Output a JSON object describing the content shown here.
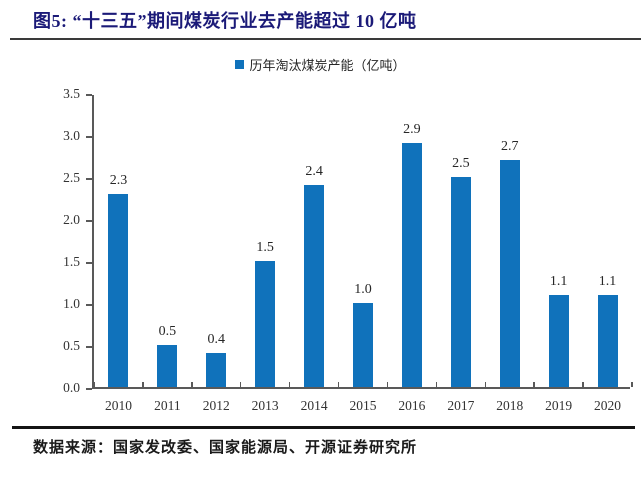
{
  "title": "图5: “十三五”期间煤炭行业去产能超过 10 亿吨",
  "source": "数据来源：国家发改委、国家能源局、开源证券研究所",
  "colors": {
    "title": "#1b1a78",
    "title_rule": "#3a3a3a",
    "bottom_rule": "#141414",
    "bar": "#1072bb",
    "axis": "#595959",
    "label": "#262626"
  },
  "chart_data": {
    "type": "bar",
    "title": "历年淘汰煤炭产能（亿吨）",
    "legend": [
      "历年淘汰煤炭产能（亿吨）"
    ],
    "legend_position": "top",
    "categories": [
      "2010",
      "2011",
      "2012",
      "2013",
      "2014",
      "2015",
      "2016",
      "2017",
      "2018",
      "2019",
      "2020"
    ],
    "values": [
      2.3,
      0.5,
      0.4,
      1.5,
      2.4,
      1.0,
      2.9,
      2.5,
      2.7,
      1.1,
      1.1
    ],
    "data_labels": [
      "2.3",
      "0.5",
      "0.4",
      "1.5",
      "2.4",
      "1.0",
      "2.9",
      "2.5",
      "2.7",
      "1.1",
      "1.1"
    ],
    "xlabel": "",
    "ylabel": "",
    "ylim": [
      0,
      3.5
    ],
    "ytick_labels": [
      "0.0",
      "0.5",
      "1.0",
      "1.5",
      "2.0",
      "2.5",
      "3.0",
      "3.5"
    ],
    "grid": false
  }
}
